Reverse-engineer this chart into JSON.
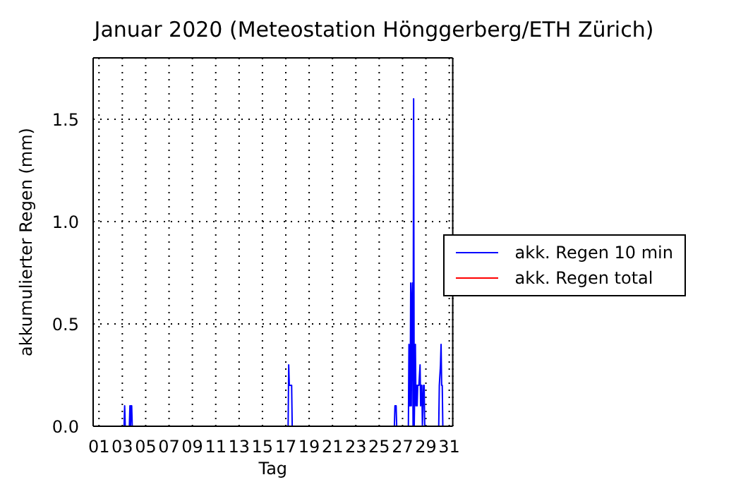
{
  "chart_data": {
    "type": "line",
    "title": "Januar 2020  (Meteostation Hönggerberg/ETH Zürich)",
    "xlabel": "Tag",
    "ylabel": "akkumulierter Regen (mm)",
    "x": [
      0.5,
      3.15,
      3.2,
      3.25,
      3.6,
      3.65,
      3.7,
      3.75,
      3.8,
      3.85,
      17.2,
      17.25,
      17.3,
      17.35,
      17.4,
      17.5,
      17.55,
      26.3,
      26.35,
      26.45,
      26.5,
      27.5,
      27.55,
      27.6,
      27.65,
      27.7,
      27.75,
      27.8,
      27.85,
      27.9,
      27.95,
      28.0,
      28.1,
      28.15,
      28.2,
      28.25,
      28.3,
      28.4,
      28.5,
      28.55,
      28.6,
      28.65,
      28.7,
      28.8,
      28.85,
      28.9,
      30.1,
      30.15,
      30.25,
      30.3,
      30.35,
      30.4,
      30.45,
      31.3
    ],
    "series": [
      {
        "name": "akk. Regen 10 min",
        "color": "#0000ff",
        "values": [
          0,
          0,
          0.1,
          0,
          0,
          0.1,
          0,
          0.1,
          0.1,
          0,
          0,
          0.3,
          0.2,
          0.2,
          0.2,
          0.2,
          0,
          0,
          0.1,
          0.1,
          0,
          0,
          0.4,
          0.1,
          0.1,
          0.7,
          0.1,
          0.6,
          0.7,
          0,
          1.6,
          0,
          0.4,
          0.1,
          0.2,
          0.1,
          0.2,
          0.2,
          0.3,
          0.1,
          0.2,
          0.2,
          0,
          0.2,
          0.2,
          0,
          0,
          0.2,
          0.3,
          0.4,
          0.2,
          0.2,
          0,
          0
        ]
      },
      {
        "name": "akk. Regen total",
        "color": "#ff0000",
        "values": [
          null,
          null,
          null,
          null,
          null,
          null,
          null,
          null,
          null,
          null,
          null,
          null,
          null,
          null,
          null,
          null,
          null,
          null,
          null,
          null,
          null,
          null,
          null,
          null,
          null,
          null,
          null,
          null,
          null,
          null,
          null,
          null,
          null,
          null,
          null,
          null,
          null,
          null,
          null,
          null,
          null,
          null,
          null,
          null,
          null,
          null,
          null,
          null,
          null,
          null,
          null,
          null,
          null,
          null
        ]
      }
    ],
    "xlim": [
      0.5,
      31.3
    ],
    "xticks": [
      {
        "value": 1,
        "label": "01"
      },
      {
        "value": 3,
        "label": "03"
      },
      {
        "value": 5,
        "label": "05"
      },
      {
        "value": 7,
        "label": "07"
      },
      {
        "value": 9,
        "label": "09"
      },
      {
        "value": 11,
        "label": "11"
      },
      {
        "value": 13,
        "label": "13"
      },
      {
        "value": 15,
        "label": "15"
      },
      {
        "value": 17,
        "label": "17"
      },
      {
        "value": 19,
        "label": "19"
      },
      {
        "value": 21,
        "label": "21"
      },
      {
        "value": 23,
        "label": "23"
      },
      {
        "value": 25,
        "label": "25"
      },
      {
        "value": 27,
        "label": "27"
      },
      {
        "value": 29,
        "label": "29"
      },
      {
        "value": 31,
        "label": "31"
      }
    ],
    "ylim": [
      0,
      1.8
    ],
    "yticks": [
      {
        "value": 0,
        "label": "0.0"
      },
      {
        "value": 0.5,
        "label": "0.5"
      },
      {
        "value": 1,
        "label": "1.0"
      },
      {
        "value": 1.5,
        "label": "1.5"
      }
    ],
    "grid": true,
    "legend": "center right",
    "marker": "none",
    "line_style": "solid"
  }
}
